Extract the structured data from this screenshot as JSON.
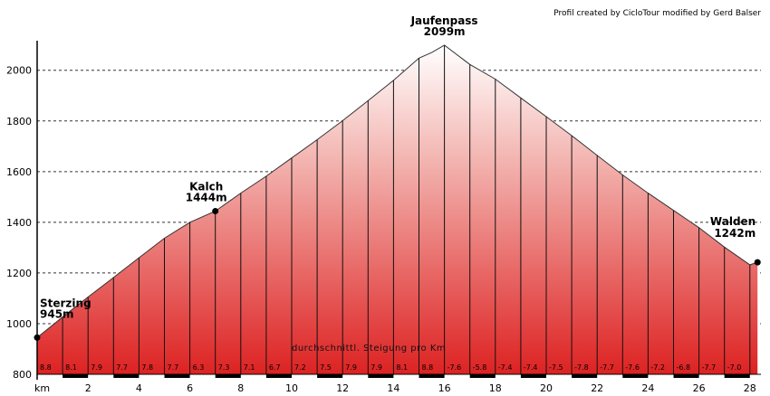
{
  "credit": "Profil created by CicloTour modified by Gerd Balser",
  "chart_data": {
    "type": "area",
    "title": "",
    "xlabel": "km",
    "ylabel": "",
    "xlim": [
      0,
      28.3
    ],
    "ylim": [
      800,
      2100
    ],
    "yticks": [
      800,
      1000,
      1200,
      1400,
      1600,
      1800,
      2000
    ],
    "xticks": [
      2,
      4,
      6,
      8,
      10,
      12,
      14,
      16,
      18,
      20,
      22,
      24,
      26,
      28
    ],
    "x_unit_label": "km",
    "profile": {
      "x": [
        0,
        1,
        2,
        3,
        4,
        5,
        6,
        7,
        8,
        9,
        10,
        11,
        12,
        13,
        14,
        15,
        15.5,
        16,
        17,
        18,
        19,
        20,
        21,
        22,
        23,
        24,
        25,
        26,
        27,
        28,
        28.3
      ],
      "y": [
        945,
        1026,
        1105,
        1182,
        1260,
        1337,
        1400,
        1444,
        1515,
        1582,
        1654,
        1726,
        1801,
        1880,
        1960,
        2048,
        2070,
        2099,
        2023,
        1965,
        1891,
        1817,
        1742,
        1664,
        1587,
        1515,
        1447,
        1379,
        1302,
        1232,
        1242
      ]
    },
    "km_gradients": [
      "8.8",
      "8.1",
      "7.9",
      "7.7",
      "7.8",
      "7.7",
      "6.3",
      "7.3",
      "7.1",
      "6.7",
      "7.2",
      "7.5",
      "7.9",
      "7.9",
      "8.1",
      "8.8",
      "-7.6",
      "-5.8",
      "-7.4",
      "-7.4",
      "-7.5",
      "-7.8",
      "-7.7",
      "-7.6",
      "-7.2",
      "-6.8",
      "-7.7",
      "-7.0"
    ],
    "annotation": "durchschnittl. Steigung pro Km",
    "places": [
      {
        "name": "Sterzing",
        "elevation": "945m",
        "x": 0,
        "y": 945,
        "marker": true
      },
      {
        "name": "Kalch",
        "elevation": "1444m",
        "x": 7,
        "y": 1444,
        "marker": true
      },
      {
        "name": "Jaufenpass",
        "elevation": "2099m",
        "x": 16,
        "y": 2099,
        "marker": false
      },
      {
        "name": "Walden",
        "elevation": "1242m",
        "x": 28.3,
        "y": 1242,
        "marker": true
      }
    ],
    "fill_top_color": "#ffffff",
    "fill_bottom_color": "#dd2222",
    "line_color": "#333333"
  }
}
